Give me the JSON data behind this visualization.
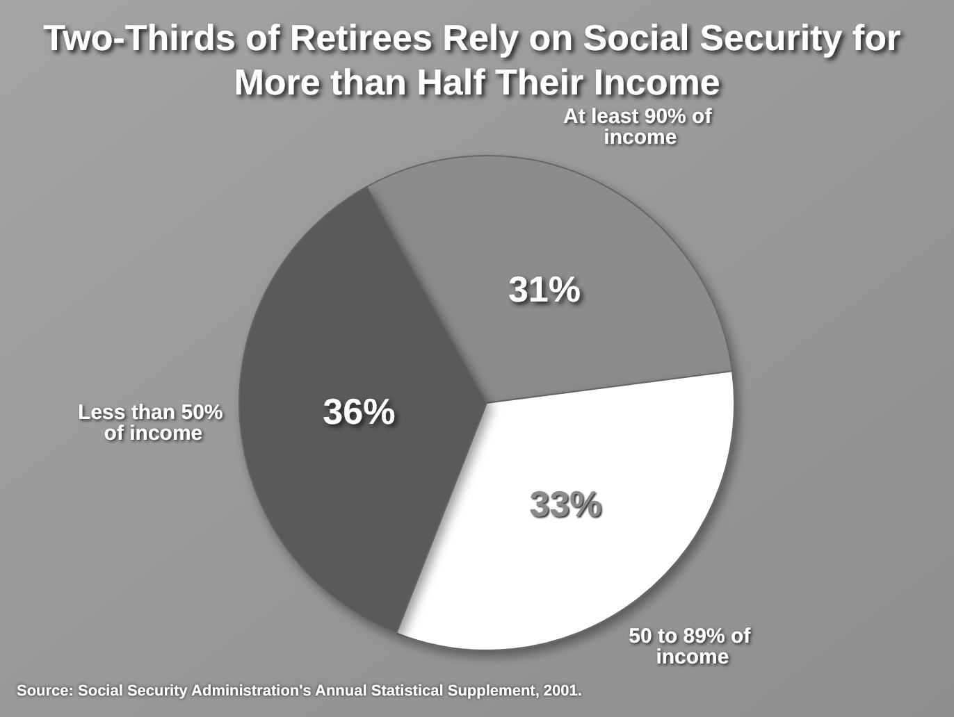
{
  "chart_data": {
    "type": "pie",
    "title": "Two-Thirds of Retirees Rely on Social Security for More than Half Their Income",
    "categories": [
      "At least 90% of income",
      "50 to 89% of income",
      "Less than 50% of income"
    ],
    "values": [
      31,
      33,
      36
    ],
    "colors": [
      "#8c8c8c",
      "#ffffff",
      "#5a5a5a"
    ],
    "value_labels": [
      "31%",
      "33%",
      "36%"
    ],
    "annotations": [
      "Source: Social Security Administration's Annual Statistical Supplement, 2001."
    ]
  }
}
